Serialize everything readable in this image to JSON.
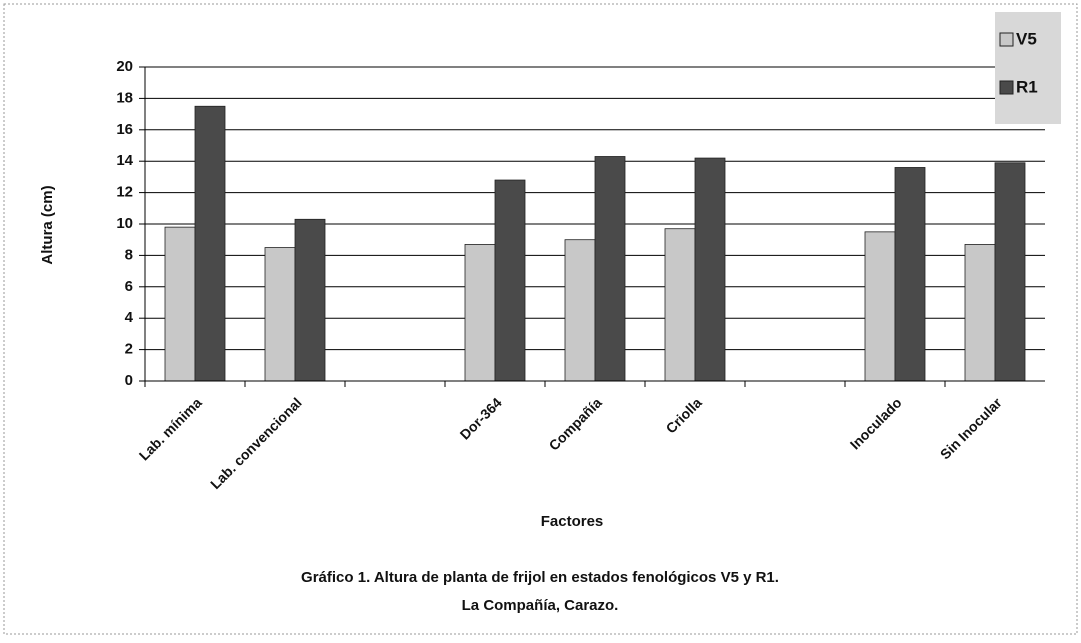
{
  "chart_data": {
    "type": "bar",
    "title": "Gráfico 1. Altura de planta de frijol en estados  fenológicos V5 y R1.",
    "subtitle": "La Compañía, Carazo.",
    "x_label": "Factores",
    "y_label": "Altura (cm)",
    "categories": [
      "Lab. mínima",
      "Lab. convencional",
      null,
      "Dor-364",
      "Compañía",
      "Criolla",
      null,
      "Inoculado",
      "Sin Inocular"
    ],
    "series": [
      {
        "name": "V5",
        "color": "#c8c8c8",
        "values": [
          9.8,
          8.5,
          null,
          8.7,
          9.0,
          9.7,
          null,
          9.5,
          8.7
        ]
      },
      {
        "name": "R1",
        "color": "#4a4a4a",
        "values": [
          17.5,
          10.3,
          null,
          12.8,
          14.3,
          14.2,
          null,
          13.6,
          13.9
        ]
      }
    ],
    "ylim": [
      0,
      20
    ],
    "yticks": [
      0,
      2,
      4,
      6,
      8,
      10,
      12,
      14,
      16,
      18,
      20
    ],
    "grid": true,
    "legend": "top-right"
  }
}
